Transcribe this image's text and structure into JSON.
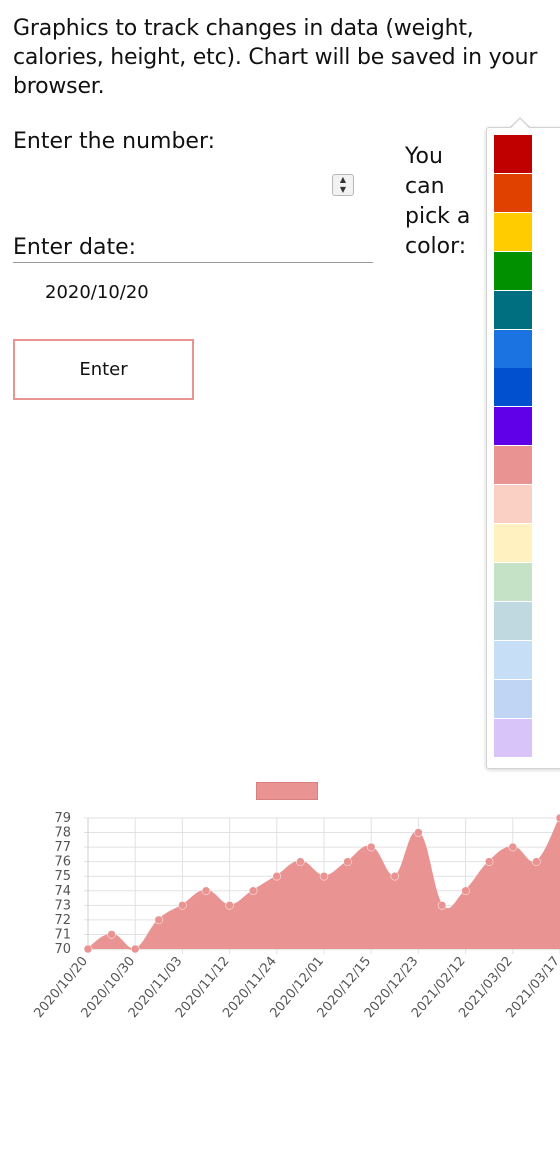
{
  "intro": {
    "text": "Graphics to track changes in data (weight, calories, height, etc). Chart will be saved in your browser."
  },
  "form": {
    "number_label": "Enter the number:",
    "number_value": "",
    "date_label": "Enter date:",
    "date_value": "2020/10/20",
    "enter_label": "Enter"
  },
  "color_picker": {
    "label": "You can pick a color:",
    "selected": "#e99493",
    "colors": [
      "#c00000",
      "#e04000",
      "#ffcc00",
      "#009000",
      "#007080",
      "#1a73e0",
      "#0050d0",
      "#6000e8",
      "#e99493",
      "#fad0c4",
      "#fff2c0",
      "#c6e2c6",
      "#c0d8e0",
      "#c6dff6",
      "#c0d4f4",
      "#d8c4f8"
    ]
  },
  "chart_data": {
    "type": "area",
    "legend_placement": "top",
    "legend_color": "#e99493",
    "series_color": "#e99493",
    "grid": true,
    "ylim": [
      70,
      79
    ],
    "y_ticks": [
      "70",
      "71",
      "72",
      "73",
      "74",
      "75",
      "76",
      "77",
      "78",
      "79"
    ],
    "x_tick_labels": [
      "2020/10/20",
      "2020/10/30",
      "2020/11/03",
      "2020/11/12",
      "2020/11/24",
      "2020/12/01",
      "2020/12/15",
      "2020/12/23",
      "2021/02/12",
      "2021/03/02",
      "2021/03/17"
    ],
    "values": [
      70,
      71,
      70,
      72,
      73,
      74,
      73,
      74,
      75,
      76,
      75,
      76,
      77,
      75,
      78,
      73,
      74,
      76,
      77,
      76,
      79
    ]
  }
}
